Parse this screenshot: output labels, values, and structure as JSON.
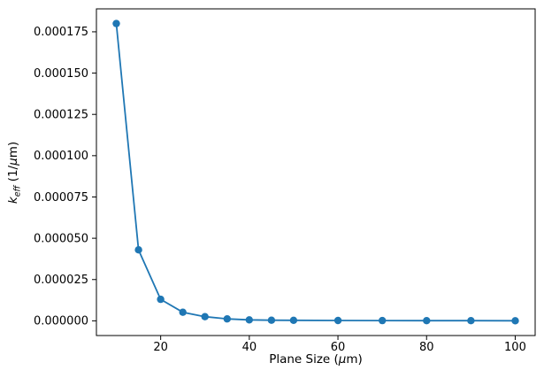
{
  "chart_data": {
    "type": "line",
    "title": "",
    "xlabel_text": "Plane Size (μm)",
    "ylabel_text": "k_eff (1/μm)",
    "xlabel": {
      "pre": "Plane Size (",
      "mu": "μ",
      "post": "m)"
    },
    "ylabel": {
      "k": "k",
      "sub": "eff",
      "open": " (1/",
      "mu": "μ",
      "close": "m)"
    },
    "x": [
      10,
      15,
      20,
      25,
      30,
      35,
      40,
      45,
      50,
      60,
      70,
      80,
      90,
      100
    ],
    "y": [
      0.00018,
      4.3e-05,
      1.3e-05,
      5.2e-06,
      2.5e-06,
      1.2e-06,
      6e-07,
      4e-07,
      3e-07,
      2e-07,
      1.5e-07,
      1e-07,
      8e-08,
      6e-08
    ],
    "x_ticks": [
      20,
      40,
      60,
      80,
      100
    ],
    "x_tick_labels": [
      "20",
      "40",
      "60",
      "80",
      "100"
    ],
    "y_ticks": [
      0,
      2.5e-05,
      5e-05,
      7.5e-05,
      0.0001,
      0.000125,
      0.00015,
      0.000175
    ],
    "y_tick_labels": [
      "0.000000",
      "0.000025",
      "0.000050",
      "0.000075",
      "0.000100",
      "0.000125",
      "0.000150",
      "0.000175"
    ],
    "xlim": [
      5.5,
      104.5
    ],
    "ylim": [
      -8.9e-06,
      0.0001889
    ],
    "line_color": "#1f77b4",
    "marker": "o",
    "marker_size": 4.2,
    "axis_color": "#000000",
    "background": "#ffffff",
    "grid": false,
    "legend": null
  }
}
